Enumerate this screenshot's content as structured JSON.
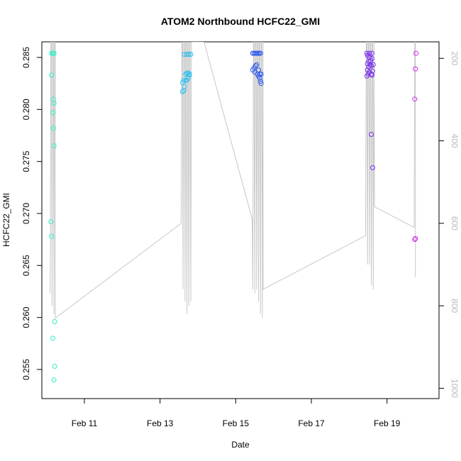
{
  "chart_data": {
    "type": "scatter",
    "title": "ATOM2 Northbound HCFC22_GMI",
    "xlabel": "Date",
    "ylabel": "HCFC22_GMI",
    "x_range": [
      "2016-02-09T21:00",
      "2016-02-20T09:00"
    ],
    "ylim": [
      0.2522,
      0.2865
    ],
    "y2lim": [
      1025,
      160
    ],
    "x_ticks": [
      {
        "label": "Feb 11",
        "value": "2016-02-11"
      },
      {
        "label": "Feb 13",
        "value": "2016-02-13"
      },
      {
        "label": "Feb 15",
        "value": "2016-02-15"
      },
      {
        "label": "Feb 17",
        "value": "2016-02-17"
      },
      {
        "label": "Feb 19",
        "value": "2016-02-19"
      }
    ],
    "y_ticks": [
      "0.255",
      "0.260",
      "0.265",
      "0.270",
      "0.275",
      "0.280",
      "0.285"
    ],
    "y2_ticks": [
      "200",
      "400",
      "600",
      "800",
      "1000"
    ],
    "grid": false,
    "legend": "none",
    "profile_color": "#c8c8c8",
    "series": [
      {
        "color": "#2ef0c8",
        "points": [
          [
            "2016-02-10T03:06",
            0.2854
          ],
          [
            "2016-02-10T03:55",
            0.2854
          ],
          [
            "2016-02-10T04:43",
            0.2854
          ],
          [
            "2016-02-10T03:06",
            0.2833
          ],
          [
            "2016-02-10T04:19",
            0.281
          ],
          [
            "2016-02-10T04:43",
            0.2806
          ],
          [
            "2016-02-10T03:55",
            0.2797
          ],
          [
            "2016-02-10T04:19",
            0.2782
          ],
          [
            "2016-02-10T04:43",
            0.2765
          ],
          [
            "2016-02-10T02:42",
            0.2692
          ],
          [
            "2016-02-10T03:06",
            0.2678
          ],
          [
            "2016-02-10T05:07",
            0.2596
          ],
          [
            "2016-02-10T03:55",
            0.258
          ],
          [
            "2016-02-10T05:07",
            0.2553
          ],
          [
            "2016-02-10T04:43",
            0.254
          ]
        ]
      },
      {
        "color": "#2ec0f0",
        "points": [
          [
            "2016-02-13T14:13",
            0.2817
          ],
          [
            "2016-02-13T15:02",
            0.2818
          ],
          [
            "2016-02-13T14:13",
            0.2826
          ],
          [
            "2016-02-13T15:02",
            0.2828
          ],
          [
            "2016-02-13T15:26",
            0.2822
          ],
          [
            "2016-02-13T16:14",
            0.2828
          ],
          [
            "2016-02-13T17:03",
            0.2828
          ],
          [
            "2016-02-13T17:51",
            0.283
          ],
          [
            "2016-02-13T18:40",
            0.2833
          ],
          [
            "2016-02-13T16:14",
            0.2834
          ],
          [
            "2016-02-13T17:03",
            0.2835
          ],
          [
            "2016-02-13T17:51",
            0.2835
          ],
          [
            "2016-02-13T18:40",
            0.2834
          ],
          [
            "2016-02-13T15:26",
            0.2853
          ],
          [
            "2016-02-13T17:03",
            0.2853
          ],
          [
            "2016-02-13T18:16",
            0.2853
          ],
          [
            "2016-02-13T19:29",
            0.2853
          ]
        ]
      },
      {
        "color": "#2e5af0",
        "points": [
          [
            "2016-02-15T10:51",
            0.2854
          ],
          [
            "2016-02-15T11:40",
            0.2854
          ],
          [
            "2016-02-15T12:29",
            0.2854
          ],
          [
            "2016-02-15T13:17",
            0.2854
          ],
          [
            "2016-02-15T14:06",
            0.2854
          ],
          [
            "2016-02-15T14:54",
            0.2854
          ],
          [
            "2016-02-15T15:43",
            0.2854
          ],
          [
            "2016-02-15T10:51",
            0.2838
          ],
          [
            "2016-02-15T11:40",
            0.284
          ],
          [
            "2016-02-15T12:29",
            0.2842
          ],
          [
            "2016-02-15T13:17",
            0.2843
          ],
          [
            "2016-02-15T12:05",
            0.2836
          ],
          [
            "2016-02-15T13:42",
            0.2834
          ],
          [
            "2016-02-15T14:30",
            0.2832
          ],
          [
            "2016-02-15T15:19",
            0.283
          ],
          [
            "2016-02-15T15:43",
            0.2827
          ],
          [
            "2016-02-15T16:08",
            0.2825
          ],
          [
            "2016-02-15T15:19",
            0.2834
          ],
          [
            "2016-02-15T16:08",
            0.2834
          ],
          [
            "2016-02-15T14:30",
            0.2838
          ]
        ]
      },
      {
        "color": "#7a2ef0",
        "points": [
          [
            "2016-02-18T11:13",
            0.2854
          ],
          [
            "2016-02-18T12:51",
            0.2854
          ],
          [
            "2016-02-18T14:28",
            0.2854
          ],
          [
            "2016-02-18T11:37",
            0.2852
          ],
          [
            "2016-02-18T12:51",
            0.285
          ],
          [
            "2016-02-18T11:37",
            0.2844
          ],
          [
            "2016-02-18T12:26",
            0.2846
          ],
          [
            "2016-02-18T13:39",
            0.2847
          ],
          [
            "2016-02-18T14:28",
            0.2849
          ],
          [
            "2016-02-18T11:37",
            0.2838
          ],
          [
            "2016-02-18T12:26",
            0.2841
          ],
          [
            "2016-02-18T13:15",
            0.2843
          ],
          [
            "2016-02-18T14:04",
            0.2842
          ],
          [
            "2016-02-18T15:17",
            0.2843
          ],
          [
            "2016-02-18T11:13",
            0.2832
          ],
          [
            "2016-02-18T12:02",
            0.2834
          ],
          [
            "2016-02-18T12:51",
            0.2836
          ],
          [
            "2016-02-18T14:04",
            0.2834
          ],
          [
            "2016-02-18T14:53",
            0.2837
          ],
          [
            "2016-02-18T14:28",
            0.2833
          ],
          [
            "2016-02-18T14:04",
            0.2776
          ],
          [
            "2016-02-18T14:53",
            0.2744
          ]
        ]
      },
      {
        "color": "#d42ef0",
        "points": [
          [
            "2016-02-19T18:26",
            0.2854
          ],
          [
            "2016-02-19T18:02",
            0.2839
          ],
          [
            "2016-02-19T17:37",
            0.281
          ],
          [
            "2016-02-19T18:02",
            0.2676
          ],
          [
            "2016-02-19T17:37",
            0.2675
          ]
        ]
      }
    ],
    "altitude_profile": [
      [
        "2016-02-10T02:18",
        770
      ],
      [
        "2016-02-10T02:42",
        160
      ],
      [
        "2016-02-10T03:06",
        160
      ],
      [
        "2016-02-10T03:30",
        800
      ],
      [
        "2016-02-10T03:55",
        160
      ],
      [
        "2016-02-10T04:19",
        160
      ],
      [
        "2016-02-10T04:43",
        820
      ],
      [
        "2016-02-10T05:07",
        160
      ],
      [
        "2016-02-10T05:31",
        160
      ],
      [
        "2016-02-10T05:31",
        830
      ],
      [
        "2016-02-13T13:24",
        600
      ],
      [
        "2016-02-13T13:49",
        160
      ],
      [
        "2016-02-13T14:13",
        160
      ],
      [
        "2016-02-13T14:37",
        760
      ],
      [
        "2016-02-13T15:02",
        160
      ],
      [
        "2016-02-13T15:26",
        160
      ],
      [
        "2016-02-13T15:50",
        790
      ],
      [
        "2016-02-13T16:14",
        160
      ],
      [
        "2016-02-13T16:38",
        160
      ],
      [
        "2016-02-13T17:03",
        820
      ],
      [
        "2016-02-13T17:27",
        160
      ],
      [
        "2016-02-13T17:51",
        160
      ],
      [
        "2016-02-13T18:16",
        800
      ],
      [
        "2016-02-13T18:40",
        160
      ],
      [
        "2016-02-13T19:04",
        160
      ],
      [
        "2016-02-13T19:29",
        790
      ],
      [
        "2016-02-13T19:53",
        160
      ],
      [
        "2016-02-14T03:55",
        160
      ],
      [
        "2016-02-15T10:27",
        590
      ],
      [
        "2016-02-15T10:51",
        760
      ],
      [
        "2016-02-15T11:15",
        160
      ],
      [
        "2016-02-15T11:40",
        160
      ],
      [
        "2016-02-15T12:05",
        770
      ],
      [
        "2016-02-15T12:29",
        160
      ],
      [
        "2016-02-15T12:53",
        160
      ],
      [
        "2016-02-15T13:17",
        760
      ],
      [
        "2016-02-15T13:42",
        160
      ],
      [
        "2016-02-15T14:06",
        160
      ],
      [
        "2016-02-15T14:30",
        790
      ],
      [
        "2016-02-15T14:54",
        160
      ],
      [
        "2016-02-15T15:19",
        160
      ],
      [
        "2016-02-15T15:43",
        820
      ],
      [
        "2016-02-15T16:08",
        160
      ],
      [
        "2016-02-15T16:32",
        160
      ],
      [
        "2016-02-15T16:56",
        830
      ],
      [
        "2016-02-15T17:20",
        160
      ],
      [
        "2016-02-15T17:20",
        760
      ],
      [
        "2016-02-18T10:24",
        630
      ],
      [
        "2016-02-18T10:49",
        160
      ],
      [
        "2016-02-18T11:13",
        160
      ],
      [
        "2016-02-18T11:37",
        700
      ],
      [
        "2016-02-18T12:02",
        160
      ],
      [
        "2016-02-18T12:26",
        160
      ],
      [
        "2016-02-18T12:51",
        700
      ],
      [
        "2016-02-18T13:15",
        160
      ],
      [
        "2016-02-18T13:39",
        160
      ],
      [
        "2016-02-18T14:04",
        750
      ],
      [
        "2016-02-18T14:28",
        160
      ],
      [
        "2016-02-18T14:53",
        160
      ],
      [
        "2016-02-18T15:17",
        760
      ],
      [
        "2016-02-18T15:41",
        160
      ],
      [
        "2016-02-18T16:05",
        560
      ],
      [
        "2016-02-19T17:13",
        610
      ],
      [
        "2016-02-19T17:37",
        160
      ],
      [
        "2016-02-19T18:02",
        160
      ],
      [
        "2016-02-19T18:02",
        730
      ]
    ]
  }
}
